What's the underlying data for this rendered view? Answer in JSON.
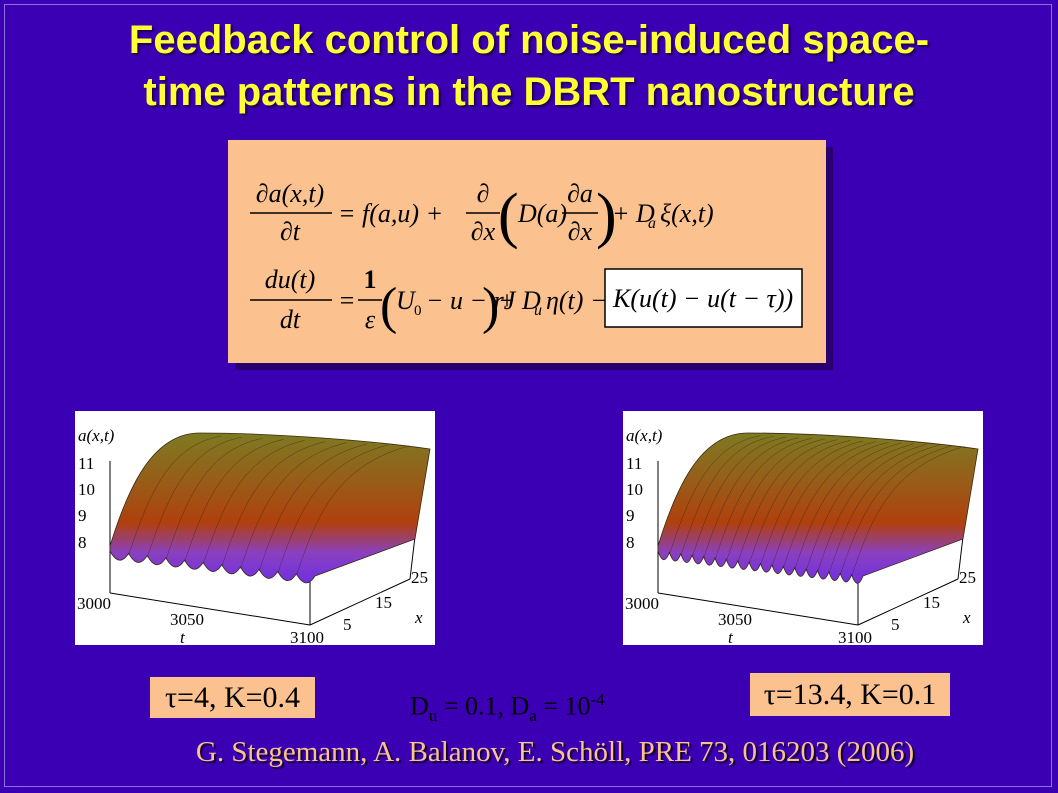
{
  "header": {
    "title_lines": [
      "Feedback control of noise-induced space-",
      "time patterns in the DBRT nanostructure"
    ]
  },
  "equations": [
    {
      "lhs_num": "∂a(x,t)",
      "lhs_den": "∂t",
      "eq": "= f(a,u) +",
      "op_num": "∂",
      "op_den": "∂x",
      "open": "(",
      "coef": "D(a)",
      "in_num": "∂a",
      "in_den": "∂x",
      "close": ")",
      "plus": "+ D",
      "sub": "a",
      "tail": "ξ(x,t)"
    },
    {
      "lhs_num": "du(t)",
      "lhs_den": "dt",
      "eq": "=",
      "fr_num": "1",
      "fr_den": "ε",
      "open": "(",
      "u": "U",
      "sub0": "0",
      "body": "− u − rJ",
      "close": ")",
      "plus": "+ D",
      "sub": "u",
      "noise": "η(t) −",
      "control": "K(u(t) − u(t − τ))"
    }
  ],
  "plots": [
    {
      "zlabel": "a(x,t)",
      "zticks": [
        "11",
        "10",
        "9",
        "8"
      ],
      "tticks": [
        "3000",
        "3050",
        "3100"
      ],
      "tlabel": "t",
      "xticks": [
        "25",
        "15",
        "5"
      ],
      "xlabel": "x",
      "caption": "τ=4, K=0.4"
    },
    {
      "zlabel": "a(x,t)",
      "zticks": [
        "11",
        "10",
        "9",
        "8"
      ],
      "tticks": [
        "3000",
        "3050",
        "3100"
      ],
      "tlabel": "t",
      "xticks": [
        "25",
        "15",
        "5"
      ],
      "xlabel": "x",
      "caption": "τ=13.4, K=0.1"
    }
  ],
  "parameters": {
    "d1": "D",
    "s1": "u",
    "t1": " = 0.1, D",
    "s2": "a",
    "t2": " = 10",
    "sup": "-4"
  },
  "citation": "G. Stegemann, A. Balanov, E. Schöll, PRE 73, 016203 (2006)"
}
